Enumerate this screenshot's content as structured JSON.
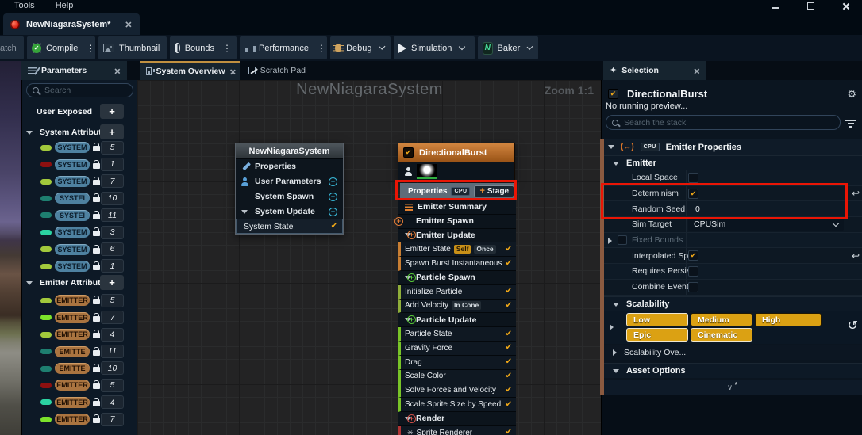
{
  "titlebar": {
    "menus": [
      {
        "label": "Tools"
      },
      {
        "label": "Help"
      }
    ]
  },
  "asset_tab": {
    "label": "NewNiagaraSystem*"
  },
  "toolbar": {
    "clipped": "atch",
    "compile": "Compile",
    "thumbnail": "Thumbnail",
    "bounds": "Bounds",
    "performance": "Performance",
    "debug": "Debug",
    "simulation": "Simulation",
    "baker": "Baker"
  },
  "params": {
    "tab": "Parameters",
    "search_placeholder": "Search",
    "user_exposed": "User Exposed",
    "system_attributes": "System Attributes",
    "emitter_attributes": "Emitter Attributes",
    "system_rows": [
      {
        "dot": "#a2c93c",
        "badge": "SYSTEM",
        "count": "5"
      },
      {
        "dot": "#8e1010",
        "badge": "SYSTEM",
        "count": "1"
      },
      {
        "dot": "#a2c93c",
        "badge": "SYSTEM",
        "count": "7"
      },
      {
        "dot": "#1e7f70",
        "badge": "SYSTEI",
        "count": "10"
      },
      {
        "dot": "#1e7f70",
        "badge": "SYSTEI",
        "count": "11"
      },
      {
        "dot": "#2bd3a2",
        "badge": "SYSTEM",
        "count": "3"
      },
      {
        "dot": "#a2c93c",
        "badge": "SYSTEM",
        "count": "6"
      },
      {
        "dot": "#a2c93c",
        "badge": "SYSTEM",
        "count": "1"
      }
    ],
    "emitter_rows": [
      {
        "dot": "#a2c93c",
        "badge": "EMITTER",
        "count": "5"
      },
      {
        "dot": "#7ce32b",
        "badge": "EMITTER",
        "count": "7"
      },
      {
        "dot": "#a2c93c",
        "badge": "EMITTER",
        "count": "4"
      },
      {
        "dot": "#1e7f70",
        "badge": "EMITTE",
        "count": "11"
      },
      {
        "dot": "#1e7f70",
        "badge": "EMITTE",
        "count": "10"
      },
      {
        "dot": "#8e1010",
        "badge": "EMITTER",
        "count": "5"
      },
      {
        "dot": "#2bd3a2",
        "badge": "EMITTER",
        "count": "4"
      },
      {
        "dot": "#7ce32b",
        "badge": "EMITTER",
        "count": "7"
      }
    ]
  },
  "graph": {
    "tab_overview": "System Overview",
    "tab_scratch": "Scratch Pad",
    "watermark": "NewNiagaraSystem",
    "zoom": "Zoom 1:1",
    "system_node": {
      "title": "NewNiagaraSystem",
      "rows": [
        {
          "label": "Properties",
          "icon": "pencil"
        },
        {
          "label": "User Parameters",
          "icon": "person",
          "plus": true
        },
        {
          "label": "System Spawn",
          "plus": true
        },
        {
          "label": "System Update",
          "plus": true,
          "arrow": true
        },
        {
          "label": "System State",
          "check": true,
          "sub": true
        }
      ]
    },
    "emitter_node": {
      "title": "DirectionalBurst",
      "props_label": "Properties",
      "cpu": "CPU",
      "stage": "Stage",
      "rows": [
        {
          "t": "summary",
          "label": "Emitter Summary"
        },
        {
          "t": "group",
          "label": "Emitter Spawn",
          "color": "orange",
          "arrow": false
        },
        {
          "t": "group",
          "label": "Emitter Update",
          "color": "orange",
          "arrow": true
        },
        {
          "t": "mod",
          "label": "Emitter State",
          "badges": [
            {
              "text": "Self",
              "gold": true
            },
            {
              "text": "Once"
            }
          ],
          "accent": "#c87e33"
        },
        {
          "t": "mod",
          "label": "Spawn Burst Instantaneous",
          "accent": "#c87e33"
        },
        {
          "t": "group",
          "label": "Particle Spawn",
          "color": "green",
          "arrow": true
        },
        {
          "t": "mod",
          "label": "Initialize Particle",
          "accent": "#8fae3a"
        },
        {
          "t": "mod",
          "label": "Add Velocity",
          "badges": [
            {
              "text": "In Cone"
            }
          ],
          "accent": "#8fae3a"
        },
        {
          "t": "group",
          "label": "Particle Update",
          "color": "green",
          "arrow": true
        },
        {
          "t": "mod",
          "label": "Particle State",
          "accent": "#79c428"
        },
        {
          "t": "mod",
          "label": "Gravity Force",
          "accent": "#79c428"
        },
        {
          "t": "mod",
          "label": "Drag",
          "accent": "#79c428"
        },
        {
          "t": "mod",
          "label": "Scale Color",
          "accent": "#79c428"
        },
        {
          "t": "mod",
          "label": "Solve Forces and Velocity",
          "accent": "#79c428"
        },
        {
          "t": "mod",
          "label": "Scale Sprite Size by Speed",
          "accent": "#79c428"
        },
        {
          "t": "group",
          "label": "Render",
          "color": "red",
          "arrow": true
        },
        {
          "t": "mod",
          "label": "Sprite Renderer",
          "accent": "#b03434",
          "icon": "sprite"
        }
      ]
    }
  },
  "selection": {
    "tab": "Selection",
    "title": "DirectionalBurst",
    "status": "No running preview...",
    "search_placeholder": "Search the stack",
    "header": {
      "cpu": "CPU",
      "label": "Emitter Properties"
    },
    "emitter_group": "Emitter",
    "props": [
      {
        "label": "Local Space",
        "control": "checkbox",
        "checked": false
      },
      {
        "label": "Determinism",
        "control": "checkbox",
        "checked": true,
        "reset": true
      },
      {
        "label": "Random Seed",
        "control": "text",
        "value": "0"
      },
      {
        "label": "Sim Target",
        "control": "dropdown",
        "value": "CPUSim"
      },
      {
        "label": "Fixed Bounds",
        "control": "none",
        "expander": true,
        "disabled": true
      },
      {
        "label": "Interpolated Sp...",
        "control": "checkbox",
        "checked": true,
        "reset": true
      },
      {
        "label": "Requires Persis...",
        "control": "checkbox",
        "checked": false
      },
      {
        "label": "Combine Event...",
        "control": "checkbox",
        "checked": false
      }
    ],
    "scalability": {
      "label": "Scalability",
      "rows": [
        [
          "Low",
          "Medium",
          "High"
        ],
        [
          "Epic",
          "Cinematic"
        ]
      ],
      "lit": [
        "Low",
        "Epic",
        "Cinematic"
      ]
    },
    "scalability_override": "Scalability Ove...",
    "asset_options": "Asset Options"
  },
  "icons": {
    "plus": "+",
    "check": "✔",
    "kebab": "⋮",
    "gear": "⚙",
    "reset": "↩",
    "reset_circle": "↺",
    "sparkle": "✦",
    "sprite_star": "✳",
    "baker_n": "N",
    "emitter_parens": "(↔)",
    "expander_chevron": "∨",
    "expander_star": "*"
  },
  "colors": {
    "accent_check": "#f0a818",
    "highlight_box": "#ea1505",
    "quality_button": "#dba113",
    "system_badge": "#4e81a0",
    "emitter_badge": "#aa7440"
  }
}
